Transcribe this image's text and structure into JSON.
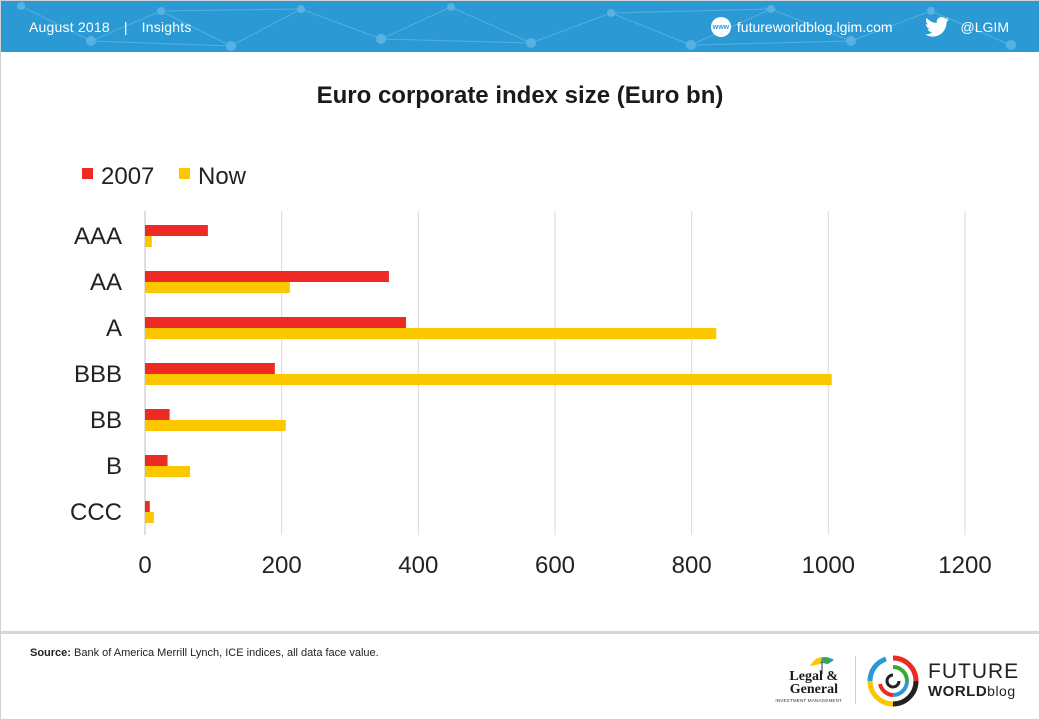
{
  "header": {
    "date": "August 2018",
    "separator": "|",
    "section": "Insights",
    "website": "futureworldblog.lgim.com",
    "www_icon_text": "www",
    "twitter_handle": "@LGIM",
    "background_color": "#2b9ad4"
  },
  "footer": {
    "source_label": "Source:",
    "source_text": "Bank of America Merrill Lynch, ICE indices, all data face value.",
    "lg_logo_line1": "Legal &",
    "lg_logo_line2": "General",
    "lg_logo_sub": "INVESTMENT MANAGEMENT",
    "fw_logo_line1": "FUTURE",
    "fw_logo_line2_main": "WORLD",
    "fw_logo_line2_blog": "blog"
  },
  "chart_data": {
    "type": "bar",
    "orientation": "horizontal",
    "title": "Euro corporate index size (Euro bn)",
    "categories": [
      "AAA",
      "AA",
      "A",
      "BBB",
      "BB",
      "B",
      "CCC"
    ],
    "series": [
      {
        "name": "2007",
        "color": "#ee2a24",
        "values": [
          92,
          357,
          382,
          190,
          36,
          33,
          7
        ]
      },
      {
        "name": "Now",
        "color": "#fdc700",
        "values": [
          10,
          212,
          836,
          1005,
          206,
          66,
          13
        ]
      }
    ],
    "xlim": [
      0,
      1200
    ],
    "xticks": [
      0,
      200,
      400,
      600,
      800,
      1000,
      1200
    ],
    "grid": true,
    "legend_position": "top-left"
  }
}
